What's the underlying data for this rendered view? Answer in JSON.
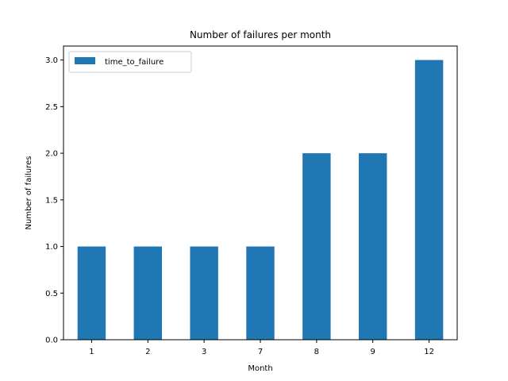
{
  "chart_data": {
    "type": "bar",
    "title": "Number of failures per month",
    "xlabel": "Month",
    "ylabel": "Number of failures",
    "categories": [
      "1",
      "2",
      "3",
      "7",
      "8",
      "9",
      "12"
    ],
    "series": [
      {
        "name": "time_to_failure",
        "values": [
          1,
          1,
          1,
          1,
          2,
          2,
          3
        ],
        "color": "#1f77b4"
      }
    ],
    "ylim": [
      0,
      3.15
    ],
    "yticks": [
      "0.0",
      "0.5",
      "1.0",
      "1.5",
      "2.0",
      "2.5",
      "3.0"
    ],
    "grid": false,
    "legend_position": "upper-left"
  }
}
